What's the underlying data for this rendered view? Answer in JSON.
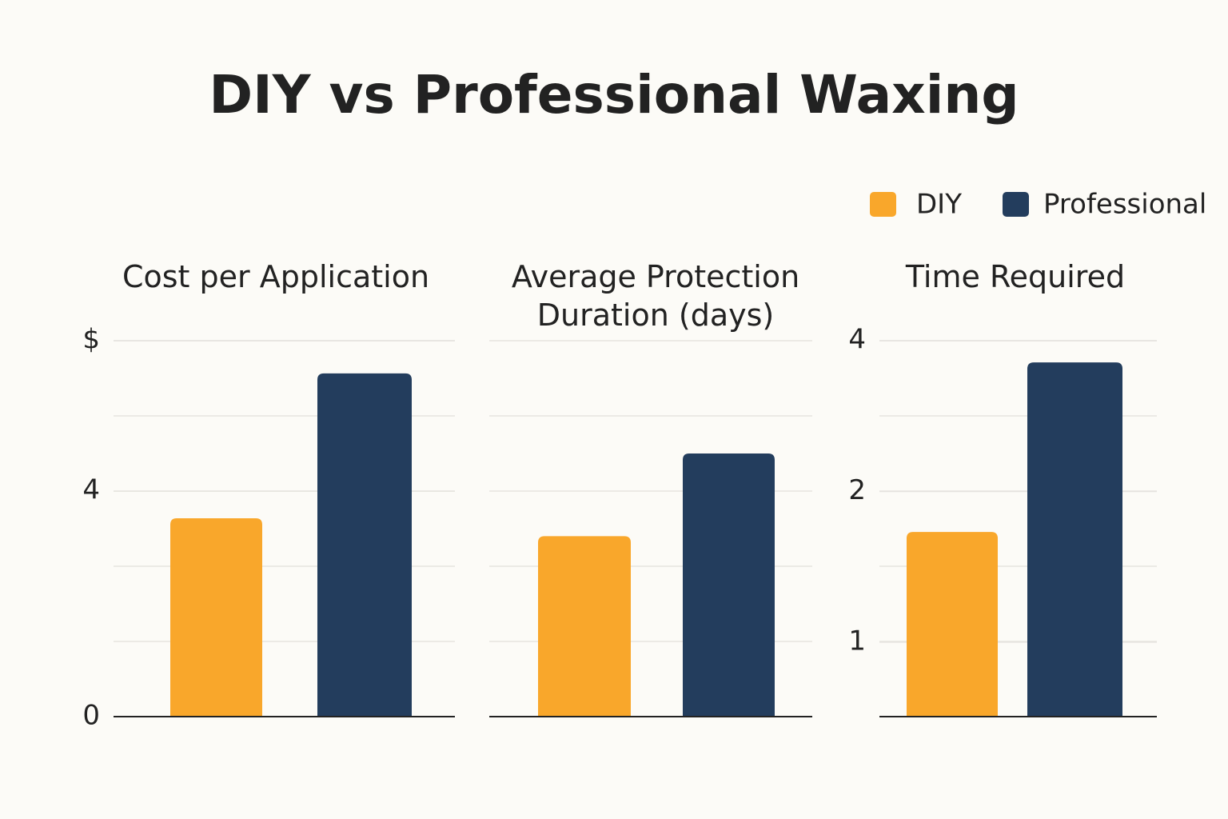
{
  "title": "DIY vs Professional Waxing",
  "chart_data": [
    {
      "type": "bar",
      "title": "Cost per Application",
      "series": [
        {
          "name": "DIY",
          "color": "#f9a72b",
          "values": [
            3.52
          ]
        },
        {
          "name": "Professional",
          "color": "#233d5d",
          "values": [
            6.09
          ]
        }
      ],
      "ylim": [
        0,
        6.67
      ],
      "yticks": [
        0,
        4,
        {
          "value": 6.67,
          "label": "$"
        }
      ],
      "grid": true
    },
    {
      "type": "bar",
      "title": "Average Protection Duration (days)",
      "series": [
        {
          "name": "DIY",
          "color": "#f9a72b",
          "values": [
            24
          ]
        },
        {
          "name": "Professional",
          "color": "#233d5d",
          "values": [
            35
          ]
        }
      ],
      "ylim": [
        0,
        50
      ],
      "grid": true
    },
    {
      "type": "bar",
      "title": "Time Required",
      "series": [
        {
          "name": "DIY",
          "color": "#f9a72b",
          "values": [
            1.66
          ]
        },
        {
          "name": "Professional",
          "color": "#233d5d",
          "values": [
            3.62
          ]
        }
      ],
      "ylim": [
        0.71,
        4
      ],
      "yticks": [
        1,
        2,
        4
      ],
      "log_scale": true,
      "grid": true
    }
  ]
}
